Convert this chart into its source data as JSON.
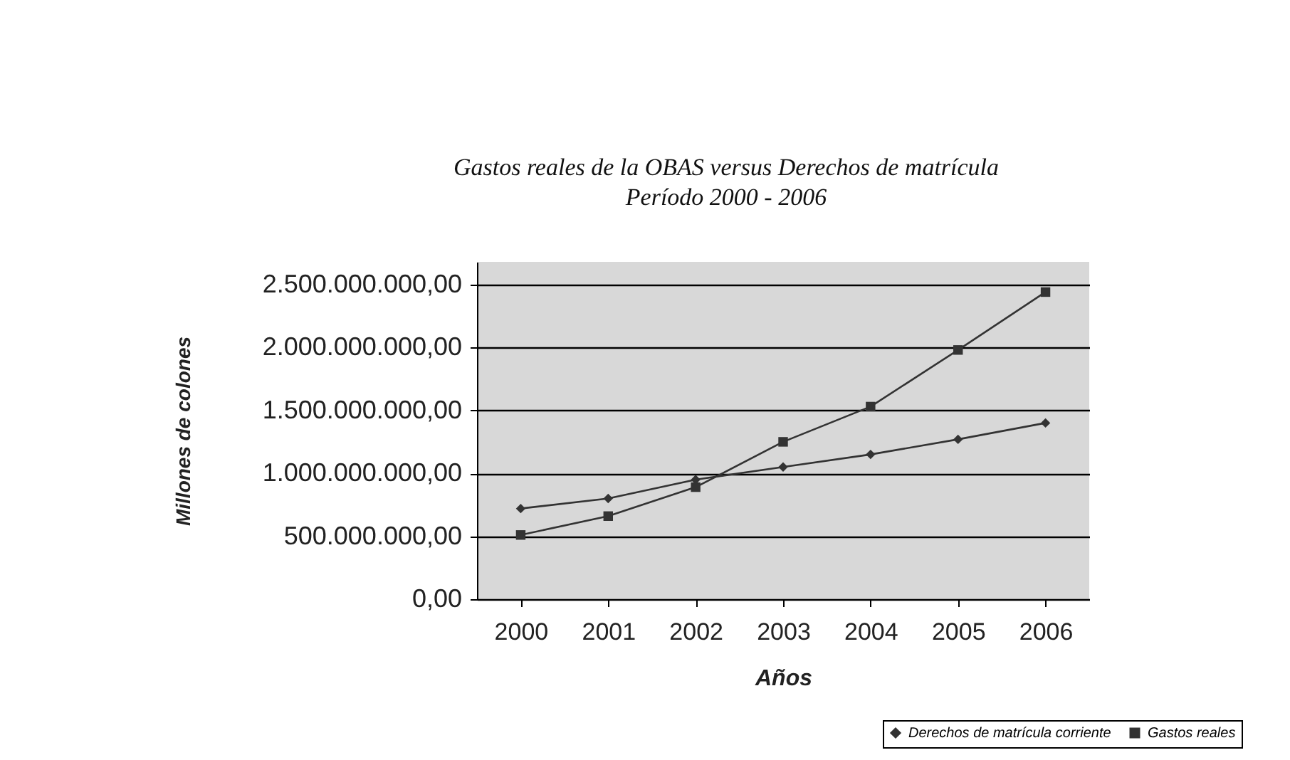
{
  "chart_data": {
    "type": "line",
    "title": "Gastos reales de la OBAS versus Derechos de matrícula",
    "subtitle": "Período 2000 - 2006",
    "xlabel": "Años",
    "ylabel": "Millones de colones",
    "categories": [
      "2000",
      "2001",
      "2002",
      "2003",
      "2004",
      "2005",
      "2006"
    ],
    "series": [
      {
        "name": "Derechos de matrícula corriente",
        "color": "#333333",
        "marker": "diamond",
        "values": [
          720000000,
          800000000,
          950000000,
          1050000000,
          1150000000,
          1270000000,
          1400000000
        ]
      },
      {
        "name": "Gastos reales",
        "color": "#333333",
        "marker": "square",
        "values": [
          510000000,
          660000000,
          890000000,
          1250000000,
          1530000000,
          1980000000,
          2440000000
        ]
      }
    ],
    "ylim": [
      0,
      2680000000
    ],
    "yticks": [
      {
        "value": 0,
        "label": "0,00"
      },
      {
        "value": 500000000,
        "label": "500.000.000,00"
      },
      {
        "value": 1000000000,
        "label": "1.000.000.000,00"
      },
      {
        "value": 1500000000,
        "label": "1.500.000.000,00"
      },
      {
        "value": 2000000000,
        "label": "2.000.000.000,00"
      },
      {
        "value": 2500000000,
        "label": "2.500.000.000,00"
      }
    ],
    "grid": "y",
    "legend": "bottom right",
    "line_style": "solid"
  }
}
